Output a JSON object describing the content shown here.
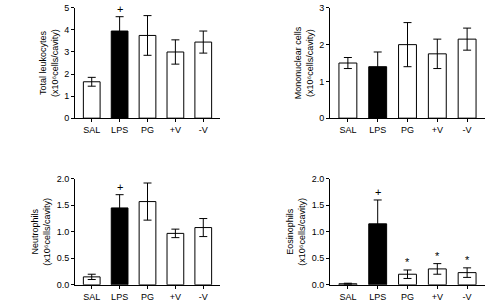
{
  "chart_data": [
    {
      "type": "bar",
      "ylabel": [
        "Total leukocytes",
        "(x10⁶cells/cavity)"
      ],
      "categories": [
        "SAL",
        "LPS",
        "PG",
        "+V",
        "-V"
      ],
      "values": [
        1.65,
        3.95,
        3.75,
        3.0,
        3.45
      ],
      "errors": [
        0.2,
        0.65,
        0.9,
        0.55,
        0.5
      ],
      "colors": [
        "#ffffff",
        "#000000",
        "#ffffff",
        "#ffffff",
        "#ffffff"
      ],
      "ylim": [
        0,
        5
      ],
      "yticks": [
        0,
        1,
        2,
        3,
        4,
        5
      ],
      "grid": false,
      "annotations": [
        {
          "category": "LPS",
          "text": "+"
        }
      ]
    },
    {
      "type": "bar",
      "ylabel": [
        "Mononuclear cells",
        "(x10⁶cells/cavity)"
      ],
      "categories": [
        "SAL",
        "LPS",
        "PG",
        "+V",
        "-V"
      ],
      "values": [
        1.5,
        1.4,
        2.0,
        1.75,
        2.15
      ],
      "errors": [
        0.15,
        0.4,
        0.6,
        0.4,
        0.3
      ],
      "colors": [
        "#ffffff",
        "#000000",
        "#ffffff",
        "#ffffff",
        "#ffffff"
      ],
      "ylim": [
        0,
        3
      ],
      "yticks": [
        0,
        1,
        2,
        3
      ],
      "grid": false,
      "annotations": []
    },
    {
      "type": "bar",
      "ylabel": [
        "Neutrophils",
        "(x10⁶cells/cavity)"
      ],
      "categories": [
        "SAL",
        "LPS",
        "PG",
        "+V",
        "-V"
      ],
      "values": [
        0.15,
        1.45,
        1.57,
        0.97,
        1.08
      ],
      "errors": [
        0.05,
        0.25,
        0.35,
        0.08,
        0.17
      ],
      "colors": [
        "#ffffff",
        "#000000",
        "#ffffff",
        "#ffffff",
        "#ffffff"
      ],
      "ylim": [
        0,
        2
      ],
      "yticks": [
        {
          "value": 0,
          "label": "0.0"
        },
        0.5,
        {
          "value": 1,
          "label": "1.0"
        },
        1.5,
        {
          "value": 2,
          "label": "2.0"
        }
      ],
      "grid": false,
      "annotations": [
        {
          "category": "LPS",
          "text": "+"
        }
      ]
    },
    {
      "type": "bar",
      "ylabel": [
        "Eosinophils",
        "(x10⁶cells/cavity)"
      ],
      "categories": [
        "SAL",
        "LPS",
        "PG",
        "+V",
        "-V"
      ],
      "values": [
        0.02,
        1.15,
        0.2,
        0.3,
        0.23
      ],
      "errors": [
        0.01,
        0.45,
        0.08,
        0.1,
        0.09
      ],
      "colors": [
        "#ffffff",
        "#000000",
        "#ffffff",
        "#ffffff",
        "#ffffff"
      ],
      "ylim": [
        0,
        2
      ],
      "yticks": [
        {
          "value": 0,
          "label": "0.0"
        },
        0.5,
        {
          "value": 1,
          "label": "1.0"
        },
        1.5,
        {
          "value": 2,
          "label": "2.0"
        }
      ],
      "grid": false,
      "annotations": [
        {
          "category": "LPS",
          "text": "+"
        },
        {
          "category": "PG",
          "text": "*"
        },
        {
          "category": "+V",
          "text": "*"
        },
        {
          "category": "-V",
          "text": "*"
        }
      ]
    }
  ]
}
